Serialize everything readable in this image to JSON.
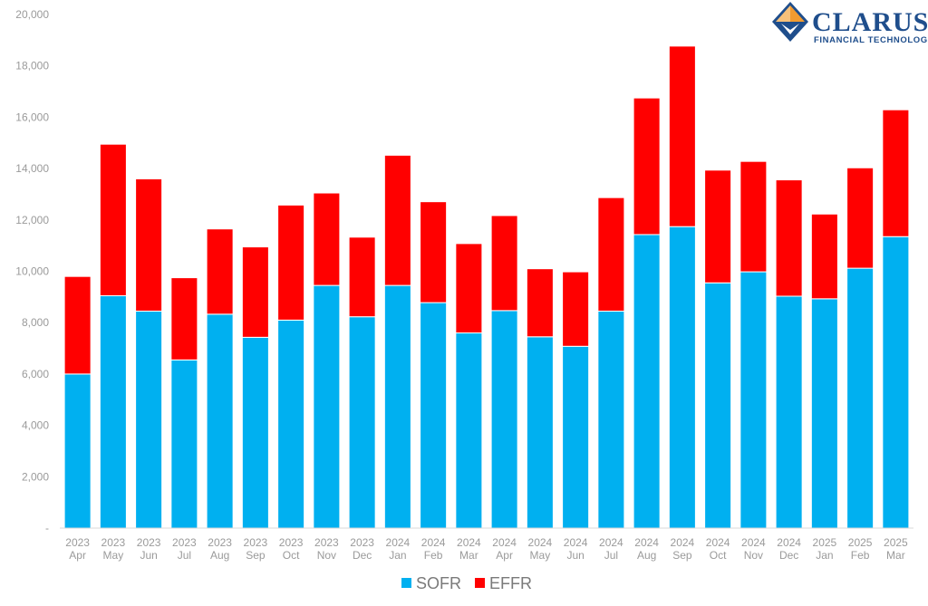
{
  "logo": {
    "name": "CLARUS",
    "subtitle": "FINANCIAL TECHNOLOGY"
  },
  "chart_data": {
    "type": "bar",
    "stacked": true,
    "categories": [
      [
        "2023",
        "Apr"
      ],
      [
        "2023",
        "May"
      ],
      [
        "2023",
        "Jun"
      ],
      [
        "2023",
        "Jul"
      ],
      [
        "2023",
        "Aug"
      ],
      [
        "2023",
        "Sep"
      ],
      [
        "2023",
        "Oct"
      ],
      [
        "2023",
        "Nov"
      ],
      [
        "2023",
        "Dec"
      ],
      [
        "2024",
        "Jan"
      ],
      [
        "2024",
        "Feb"
      ],
      [
        "2024",
        "Mar"
      ],
      [
        "2024",
        "Apr"
      ],
      [
        "2024",
        "May"
      ],
      [
        "2024",
        "Jun"
      ],
      [
        "2024",
        "Jul"
      ],
      [
        "2024",
        "Aug"
      ],
      [
        "2024",
        "Sep"
      ],
      [
        "2024",
        "Oct"
      ],
      [
        "2024",
        "Nov"
      ],
      [
        "2024",
        "Dec"
      ],
      [
        "2025",
        "Jan"
      ],
      [
        "2025",
        "Feb"
      ],
      [
        "2025",
        "Mar"
      ]
    ],
    "series": [
      {
        "name": "SOFR",
        "color": "#00b0f0",
        "values": [
          6000,
          9050,
          8450,
          6550,
          8330,
          7430,
          8100,
          9450,
          8230,
          9450,
          8780,
          7600,
          8470,
          7450,
          7080,
          8450,
          11430,
          11740,
          9550,
          9980,
          9030,
          8930,
          10120,
          11350
        ]
      },
      {
        "name": "EFFR",
        "color": "#ff0000",
        "values": [
          3800,
          5900,
          5150,
          3200,
          3320,
          3520,
          4480,
          3600,
          3100,
          5070,
          3930,
          3480,
          3700,
          2650,
          2900,
          4420,
          5320,
          7030,
          4390,
          4300,
          4530,
          3300,
          3910,
          4940
        ]
      }
    ],
    "yticks": [
      "-",
      "2,000",
      "4,000",
      "6,000",
      "8,000",
      "10,000",
      "12,000",
      "14,000",
      "16,000",
      "18,000",
      "20,000"
    ],
    "ylim": [
      0,
      20000
    ],
    "grid": false,
    "legend": "bottom-center"
  }
}
